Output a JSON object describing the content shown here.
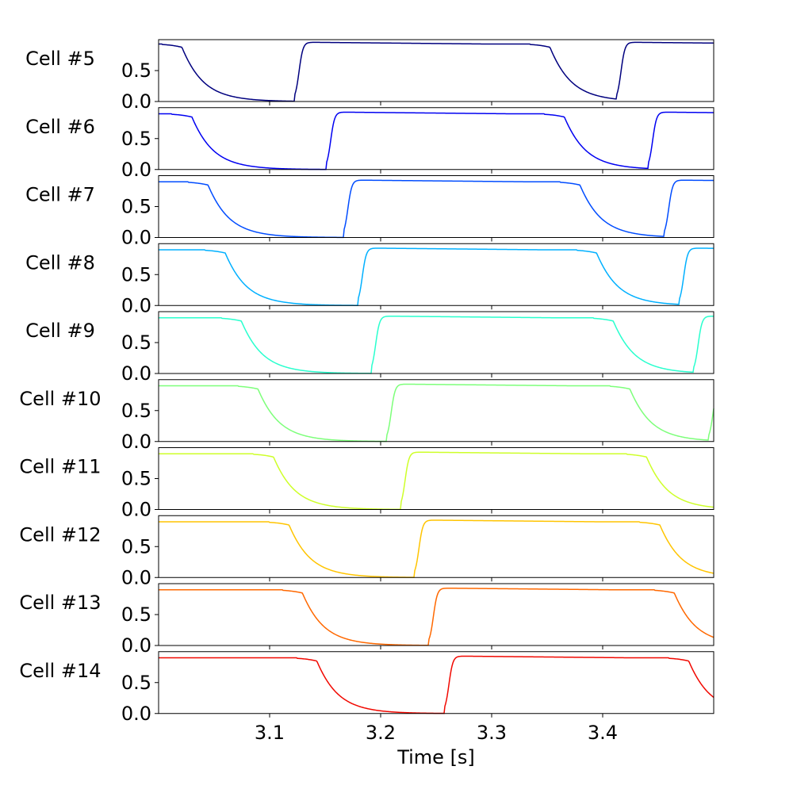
{
  "chart_data": {
    "type": "line",
    "xlabel": "Time [s]",
    "xlim": [
      3.0,
      3.5
    ],
    "x_ticks": [
      3.1,
      3.2,
      3.3,
      3.4
    ],
    "x_tick_labels": [
      "3.1",
      "3.2",
      "3.3",
      "3.4"
    ],
    "ylim": [
      0.0,
      1.0
    ],
    "y_ticks": [
      0.0,
      0.5
    ],
    "y_tick_labels": [
      "0.0",
      "0.5"
    ],
    "grid": false,
    "panels": [
      {
        "label": "Cell #5",
        "color": "#00007f",
        "start_high": true,
        "down_times": [
          3.003,
          3.3345
        ],
        "up_times": [
          3.1225,
          3.4125
        ],
        "high_top": 0.96,
        "high_bottom": 0.93
      },
      {
        "label": "Cell #6",
        "color": "#0000f1",
        "start_high": true,
        "down_times": [
          3.012,
          3.3475
        ],
        "up_times": [
          3.151,
          3.441
        ],
        "high_top": 0.93,
        "high_bottom": 0.9
      },
      {
        "label": "Cell #7",
        "color": "#004cff",
        "start_high": true,
        "down_times": [
          3.0265,
          3.3615
        ],
        "up_times": [
          3.1665,
          3.4555
        ],
        "high_top": 0.93,
        "high_bottom": 0.9
      },
      {
        "label": "Cell #8",
        "color": "#00b0ff",
        "start_high": true,
        "down_times": [
          3.042,
          3.3765
        ],
        "up_times": [
          3.1795,
          3.469
        ],
        "high_top": 0.93,
        "high_bottom": 0.9
      },
      {
        "label": "Cell #9",
        "color": "#29ffce",
        "start_high": true,
        "down_times": [
          3.0565,
          3.3915
        ],
        "up_times": [
          3.1915,
          3.482
        ],
        "high_top": 0.93,
        "high_bottom": 0.9
      },
      {
        "label": "Cell #10",
        "color": "#7dff7a",
        "start_high": true,
        "down_times": [
          3.0715,
          3.4065
        ],
        "up_times": [
          3.2055,
          3.4955
        ],
        "high_top": 0.93,
        "high_bottom": 0.9
      },
      {
        "label": "Cell #11",
        "color": "#ceff29",
        "start_high": true,
        "down_times": [
          3.0855,
          3.4215
        ],
        "up_times": [
          3.218
        ],
        "high_top": 0.93,
        "high_bottom": 0.9
      },
      {
        "label": "Cell #12",
        "color": "#ffc400",
        "start_high": true,
        "down_times": [
          3.0995,
          3.4335
        ],
        "up_times": [
          3.2305
        ],
        "high_top": 0.93,
        "high_bottom": 0.9
      },
      {
        "label": "Cell #13",
        "color": "#ff6800",
        "start_high": true,
        "down_times": [
          3.1115,
          3.4465
        ],
        "up_times": [
          3.2435
        ],
        "high_top": 0.93,
        "high_bottom": 0.9
      },
      {
        "label": "Cell #14",
        "color": "#f10800",
        "start_high": true,
        "down_times": [
          3.1245,
          3.4595
        ],
        "up_times": [
          3.2575
        ],
        "high_top": 0.93,
        "high_bottom": 0.9
      }
    ]
  }
}
